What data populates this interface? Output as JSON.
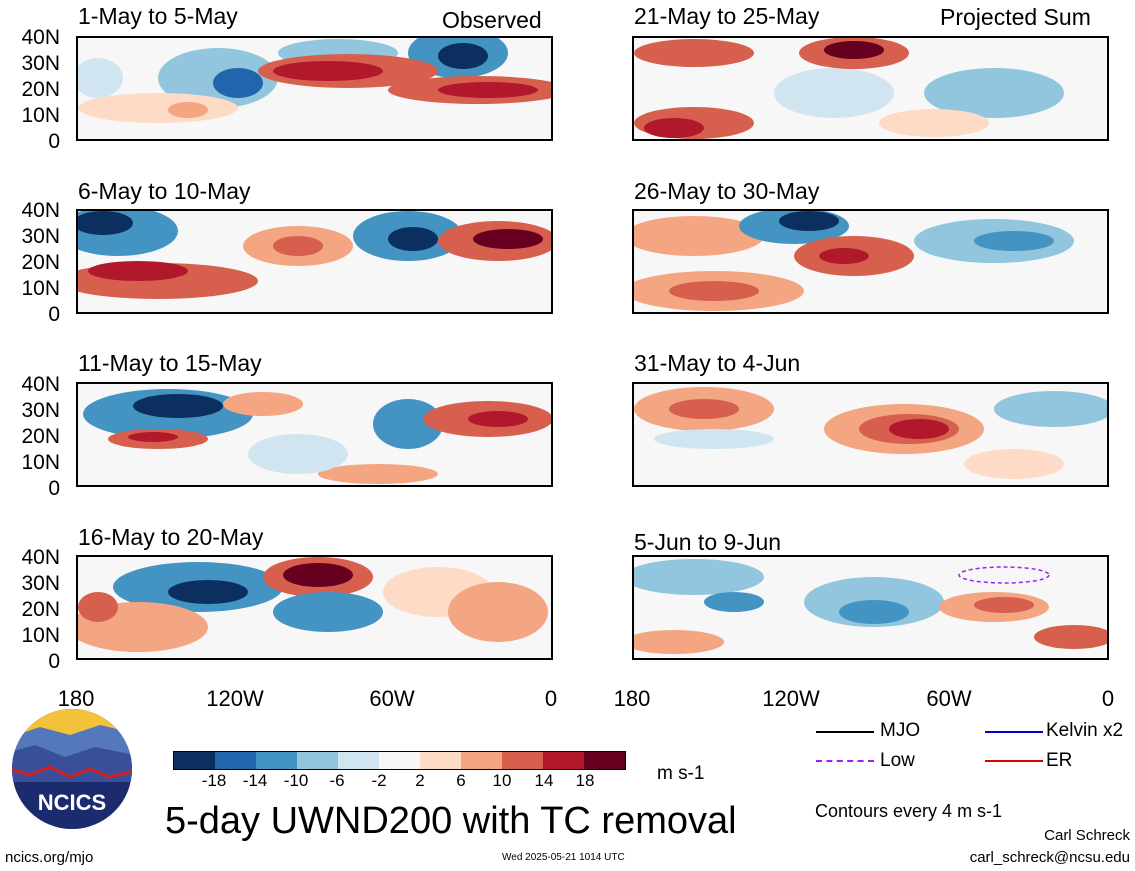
{
  "header": {
    "left_label": "Observed",
    "right_label": "Projected Sum"
  },
  "panels": [
    {
      "title": "1-May to 5-May",
      "column": "left"
    },
    {
      "title": "6-May to 10-May",
      "column": "left"
    },
    {
      "title": "11-May to 15-May",
      "column": "left"
    },
    {
      "title": "16-May to 20-May",
      "column": "left"
    },
    {
      "title": "21-May to 25-May",
      "column": "right"
    },
    {
      "title": "26-May to 30-May",
      "column": "right"
    },
    {
      "title": "31-May to 4-Jun",
      "column": "right"
    },
    {
      "title": "5-Jun to 9-Jun",
      "column": "right"
    }
  ],
  "axes": {
    "y_labels": [
      "40N",
      "30N",
      "20N",
      "10N",
      "0"
    ],
    "x_labels": [
      "180",
      "120W",
      "60W",
      "0"
    ]
  },
  "colorbar": {
    "ticks": [
      "-18",
      "-14",
      "-10",
      "-6",
      "-2",
      "2",
      "6",
      "10",
      "14",
      "18"
    ],
    "colors": [
      "#0b2f5e",
      "#2166ac",
      "#4393c3",
      "#92c5de",
      "#d1e5f0",
      "#f7f7f7",
      "#fddbc7",
      "#f4a582",
      "#d6604d",
      "#b2182b",
      "#67001f"
    ],
    "units": "m s-1"
  },
  "title": "5-day UWND200 with TC removal",
  "legend": {
    "items": [
      {
        "label": "MJO",
        "color": "#000000",
        "style": "solid"
      },
      {
        "label": "Kelvin x2",
        "color": "#0000cc",
        "style": "solid"
      },
      {
        "label": "Low",
        "color": "#a020f0",
        "style": "dashed"
      },
      {
        "label": "ER",
        "color": "#dd0000",
        "style": "solid"
      }
    ],
    "contours_note": "Contours every 4 m s-1"
  },
  "logo": {
    "text": "NCICS"
  },
  "footer": {
    "url": "ncics.org/mjo",
    "timestamp": "Wed 2025-05-21 1014 UTC",
    "author": "Carl Schreck",
    "email": "carl_schreck@ncsu.edu"
  }
}
